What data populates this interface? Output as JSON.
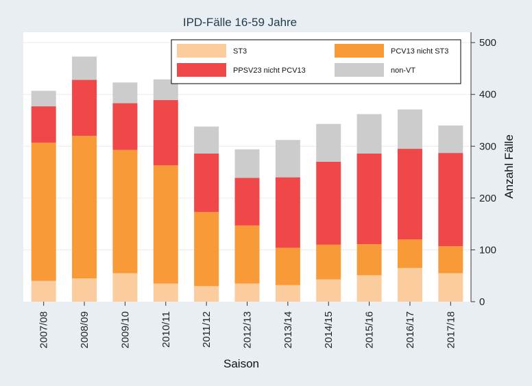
{
  "chart_data": {
    "type": "bar",
    "stacked": true,
    "title": "IPD-Fälle 16-59 Jahre",
    "xlabel": "Saison",
    "ylabel": "Anzahl Fälle",
    "y_axis_side": "right",
    "ylim": [
      0,
      520
    ],
    "yticks": [
      0,
      100,
      200,
      300,
      400,
      500
    ],
    "grid": true,
    "legend_position": "top-right",
    "categories": [
      "2007/08",
      "2008/09",
      "2009/10",
      "2010/11",
      "2011/12",
      "2012/13",
      "2013/14",
      "2014/15",
      "2015/16",
      "2016/17",
      "2017/18"
    ],
    "series": [
      {
        "name": "ST3",
        "color": "#fbcd9e",
        "values": [
          40,
          45,
          55,
          35,
          30,
          35,
          32,
          43,
          51,
          65,
          55
        ]
      },
      {
        "name": "PCV13 nicht ST3",
        "color": "#f89a38",
        "values": [
          267,
          275,
          238,
          228,
          143,
          112,
          72,
          67,
          60,
          55,
          52
        ]
      },
      {
        "name": "PPSV23 nicht PCV13",
        "color": "#f04848",
        "values": [
          70,
          108,
          90,
          126,
          113,
          92,
          136,
          160,
          175,
          175,
          180
        ]
      },
      {
        "name": "non-VT",
        "color": "#cccccc",
        "values": [
          30,
          45,
          40,
          40,
          52,
          55,
          72,
          73,
          76,
          76,
          53
        ]
      }
    ]
  }
}
